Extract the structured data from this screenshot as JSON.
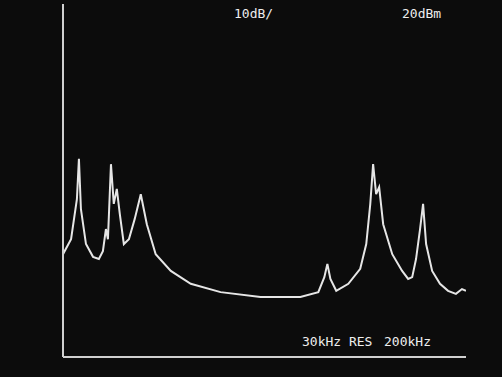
{
  "chart_data": {
    "type": "line",
    "annotations": [
      "10dB/",
      "20dBm",
      "30kHz RES",
      "200kHz"
    ],
    "x": [
      0,
      40,
      69,
      79,
      89,
      114,
      149,
      178,
      198,
      213,
      223,
      238,
      252,
      267,
      282,
      302,
      327,
      356,
      386,
      416,
      460,
      535,
      634,
      782,
      980,
      1178,
      1267,
      1297,
      1312,
      1327,
      1356,
      1416,
      1475,
      1505,
      1525,
      1539,
      1554,
      1569,
      1589,
      1634,
      1683,
      1713,
      1733,
      1752,
      1772,
      1787,
      1802,
      1832,
      1871,
      1911,
      1950,
      1980,
      2000
    ],
    "values": [
      -36.7,
      -33.3,
      -24.2,
      -15.1,
      -26.5,
      -34.4,
      -37.3,
      -37.8,
      -36.0,
      -31.0,
      -33.3,
      -16.3,
      -25.3,
      -21.9,
      -27.6,
      -34.4,
      -33.3,
      -28.7,
      -23.1,
      -29.9,
      -36.7,
      -40.5,
      -43.4,
      -45.3,
      -46.4,
      -46.4,
      -45.3,
      -41.9,
      -38.9,
      -42.3,
      -45.0,
      -43.4,
      -40.0,
      -34.4,
      -25.3,
      -16.3,
      -23.1,
      -21.5,
      -29.9,
      -36.7,
      -40.5,
      -42.3,
      -41.9,
      -37.8,
      -31.0,
      -25.3,
      -34.4,
      -40.5,
      -43.4,
      -45.0,
      -45.7,
      -44.6,
      -45.0
    ],
    "color": "#e6e6e6",
    "xlim": [
      0,
      2000
    ],
    "xticks": [
      0,
      200,
      400,
      600,
      800,
      1000,
      1200,
      1400,
      1600,
      1800,
      2000
    ],
    "ylim": [
      -60,
      20
    ],
    "yticks": [
      -60,
      -50,
      -40,
      -30,
      -20,
      -10,
      0,
      10,
      20
    ],
    "grid": true,
    "tick_labels": false
  }
}
